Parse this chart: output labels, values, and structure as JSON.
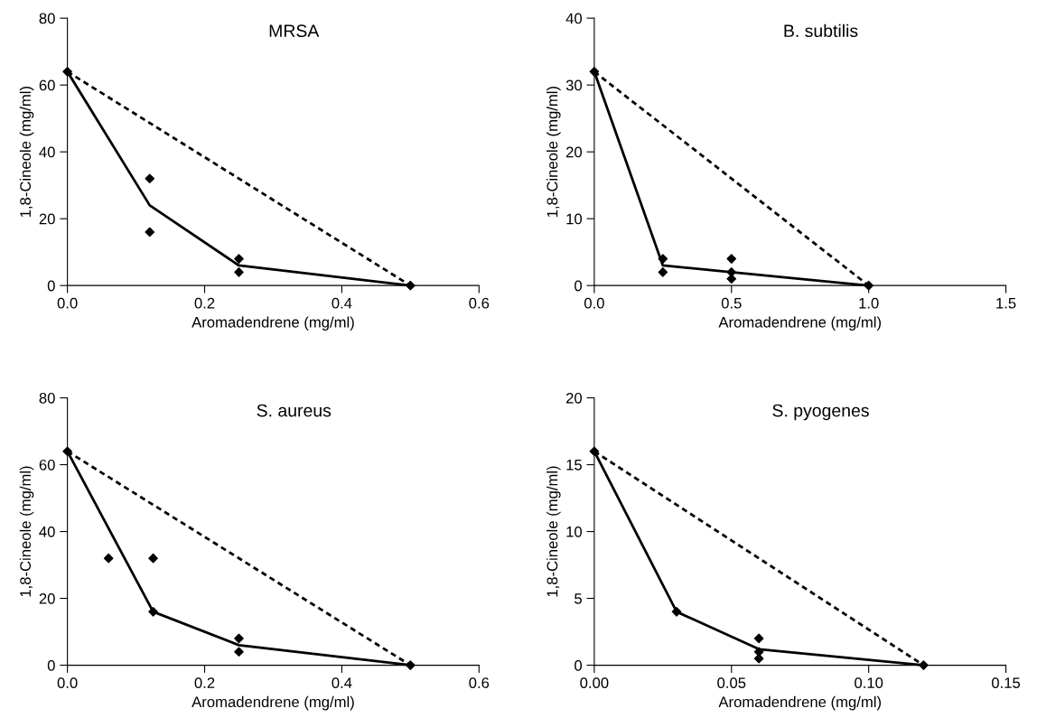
{
  "chart_data": [
    {
      "type": "scatter",
      "title": "MRSA",
      "xlabel": "Aromadendrene (mg/ml)",
      "ylabel": "1,8-Cineole (mg/ml)",
      "xlim": [
        0,
        0.6
      ],
      "ylim": [
        0,
        80
      ],
      "xticks": [
        {
          "value": 0,
          "label": "0.0"
        },
        {
          "value": 0.2,
          "label": "0.2"
        },
        {
          "value": 0.4,
          "label": "0.4"
        },
        {
          "value": 0.6,
          "label": "0.6"
        }
      ],
      "yticks": [
        0,
        20,
        40,
        60,
        80
      ],
      "grid": false,
      "legend": false,
      "series": [
        {
          "type": "scatter",
          "color": "#000000",
          "marker": "diamond",
          "x": [
            0,
            0.12,
            0.12,
            0.25,
            0.25,
            0.5
          ],
          "values": [
            64,
            32,
            16,
            8,
            4,
            0
          ]
        },
        {
          "type": "line",
          "color": "#000000",
          "line_style": "solid",
          "x": [
            0,
            0.12,
            0.25,
            0.5
          ],
          "values": [
            64,
            24,
            6,
            0
          ]
        },
        {
          "type": "line",
          "color": "#000000",
          "line_style": "dashed",
          "x": [
            0,
            0.5
          ],
          "values": [
            64,
            0
          ]
        }
      ]
    },
    {
      "type": "scatter",
      "title": "B. subtilis",
      "xlabel": "Aromadendrene (mg/ml)",
      "ylabel": "1,8-Cineole (mg/ml)",
      "xlim": [
        0,
        1.5
      ],
      "ylim": [
        0,
        40
      ],
      "xticks": [
        {
          "value": 0,
          "label": "0.0"
        },
        {
          "value": 0.5,
          "label": "0.5"
        },
        {
          "value": 1,
          "label": "1.0"
        },
        {
          "value": 1.5,
          "label": "1.5"
        }
      ],
      "yticks": [
        0,
        10,
        20,
        30,
        40
      ],
      "grid": false,
      "legend": false,
      "series": [
        {
          "type": "scatter",
          "color": "#000000",
          "marker": "diamond",
          "x": [
            0,
            0.25,
            0.25,
            0.5,
            0.5,
            0.5,
            1
          ],
          "values": [
            32,
            4,
            2,
            4,
            2,
            1,
            0
          ]
        },
        {
          "type": "line",
          "color": "#000000",
          "line_style": "solid",
          "x": [
            0,
            0.25,
            0.5,
            1
          ],
          "values": [
            32,
            3,
            2,
            0
          ]
        },
        {
          "type": "line",
          "color": "#000000",
          "line_style": "dashed",
          "x": [
            0,
            1
          ],
          "values": [
            32,
            0
          ]
        }
      ]
    },
    {
      "type": "scatter",
      "title": "S. aureus",
      "xlabel": "Aromadendrene (mg/ml)",
      "ylabel": "1,8-Cineole (mg/ml)",
      "xlim": [
        0,
        0.6
      ],
      "ylim": [
        0,
        80
      ],
      "xticks": [
        {
          "value": 0,
          "label": "0.0"
        },
        {
          "value": 0.2,
          "label": "0.2"
        },
        {
          "value": 0.4,
          "label": "0.4"
        },
        {
          "value": 0.6,
          "label": "0.6"
        }
      ],
      "yticks": [
        0,
        20,
        40,
        60,
        80
      ],
      "grid": false,
      "legend": false,
      "series": [
        {
          "type": "scatter",
          "color": "#000000",
          "marker": "diamond",
          "x": [
            0,
            0.06,
            0.125,
            0.125,
            0.25,
            0.25,
            0.5
          ],
          "values": [
            64,
            32,
            32,
            16,
            8,
            4,
            0
          ]
        },
        {
          "type": "line",
          "color": "#000000",
          "line_style": "solid",
          "x": [
            0,
            0.125,
            0.25,
            0.5
          ],
          "values": [
            64,
            16,
            6,
            0
          ]
        },
        {
          "type": "line",
          "color": "#000000",
          "line_style": "dashed",
          "x": [
            0,
            0.5
          ],
          "values": [
            64,
            0
          ]
        }
      ]
    },
    {
      "type": "scatter",
      "title": "S. pyogenes",
      "xlabel": "Aromadendrene (mg/ml)",
      "ylabel": "1,8-Cineole (mg/ml)",
      "xlim": [
        0,
        0.15
      ],
      "ylim": [
        0,
        20
      ],
      "xticks": [
        {
          "value": 0,
          "label": "0.00"
        },
        {
          "value": 0.05,
          "label": "0.05"
        },
        {
          "value": 0.1,
          "label": "0.10"
        },
        {
          "value": 0.15,
          "label": "0.15"
        }
      ],
      "yticks": [
        0,
        5,
        10,
        15,
        20
      ],
      "grid": false,
      "legend": false,
      "series": [
        {
          "type": "scatter",
          "color": "#000000",
          "marker": "diamond",
          "x": [
            0,
            0.03,
            0.06,
            0.06,
            0.06,
            0.12
          ],
          "values": [
            16,
            4,
            2,
            1,
            0.5,
            0
          ]
        },
        {
          "type": "line",
          "color": "#000000",
          "line_style": "solid",
          "x": [
            0,
            0.03,
            0.06,
            0.12
          ],
          "values": [
            16,
            4,
            1.2,
            0
          ]
        },
        {
          "type": "line",
          "color": "#000000",
          "line_style": "dashed",
          "x": [
            0,
            0.12
          ],
          "values": [
            16,
            0
          ]
        }
      ]
    }
  ]
}
